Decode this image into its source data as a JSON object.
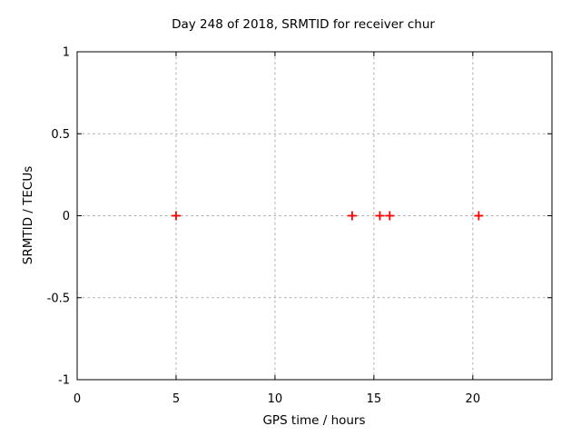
{
  "chart_data": {
    "type": "scatter",
    "title": "Day 248 of 2018, SRMTID for receiver chur",
    "xlabel": "GPS time / hours",
    "ylabel": "SRMTID / TECUs",
    "xlim": [
      0,
      24
    ],
    "ylim": [
      -1,
      1
    ],
    "xticks": {
      "values": [
        0,
        5,
        10,
        15,
        20
      ],
      "labels": [
        "0",
        "5",
        "10",
        "15",
        "20"
      ]
    },
    "yticks": {
      "values": [
        1,
        0.5,
        0,
        -0.5,
        -1
      ],
      "labels": [
        "1",
        "0.5",
        "0",
        "-0.5",
        "-1"
      ]
    },
    "grid": true,
    "legend_position": "none",
    "series": [
      {
        "name": "SRMTID",
        "marker": "plus",
        "color": "#ff0000",
        "points": [
          {
            "x": 5.0,
            "y": 0
          },
          {
            "x": 13.9,
            "y": 0
          },
          {
            "x": 15.3,
            "y": 0
          },
          {
            "x": 15.8,
            "y": 0
          },
          {
            "x": 20.3,
            "y": 0
          }
        ]
      }
    ],
    "colors": {
      "background": "#ffffff",
      "border": "#000000",
      "grid": "#a9a9a9",
      "text": "#000000",
      "marker": "#ff0000"
    }
  }
}
